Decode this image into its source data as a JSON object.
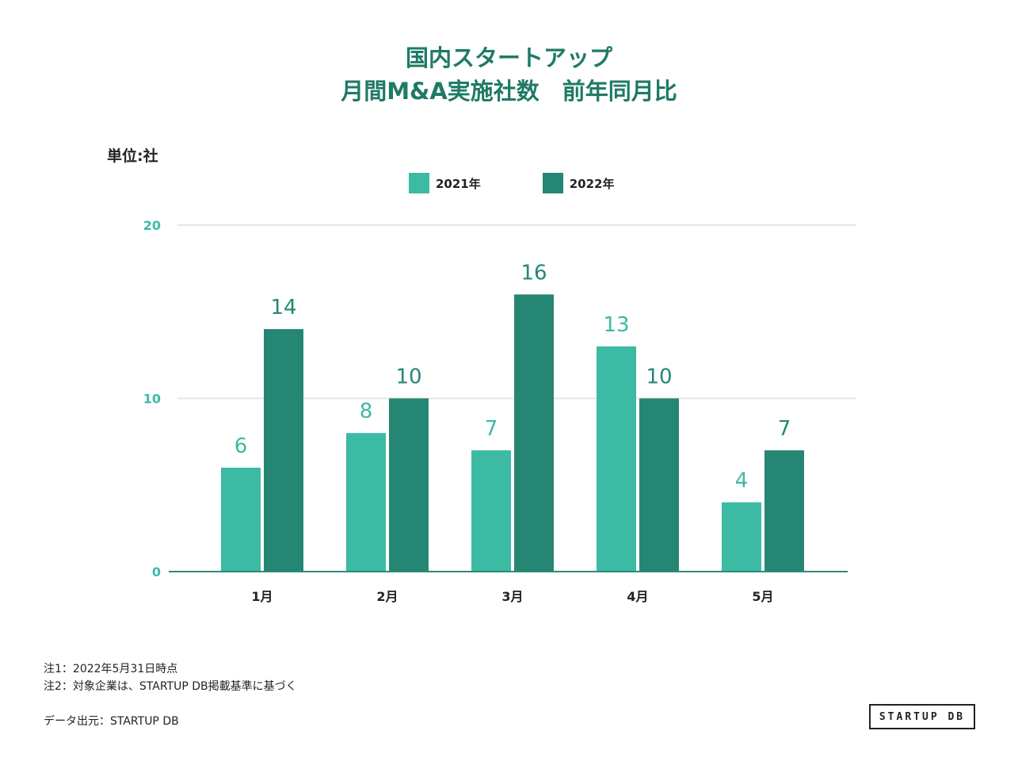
{
  "chart_data": {
    "type": "bar",
    "title_line1": "国内スタートアップ",
    "title_line2": "月間M&A実施社数　前年同月比",
    "unit_label": "単位:社",
    "categories": [
      "1月",
      "2月",
      "3月",
      "4月",
      "5月"
    ],
    "series": [
      {
        "name": "2021年",
        "color": "#3dbaa3",
        "values": [
          6,
          8,
          7,
          13,
          4
        ]
      },
      {
        "name": "2022年",
        "color": "#268674",
        "values": [
          14,
          10,
          16,
          10,
          7
        ]
      }
    ],
    "y_ticks": [
      "0",
      "10",
      "20"
    ],
    "ylim": [
      0,
      20
    ],
    "grid": true,
    "legend": "top-center"
  },
  "footer": {
    "note1": "注1：2022年5月31日時点",
    "note2": "注2：対象企業は、STARTUP DB掲載基準に基づく",
    "source": "データ出元：STARTUP DB",
    "logo": "STARTUP DB"
  },
  "colors": {
    "title": "#1f7a66",
    "axis": "#2e8a77",
    "tick": "#3dbaa3",
    "grid": "#e6e6e6"
  }
}
